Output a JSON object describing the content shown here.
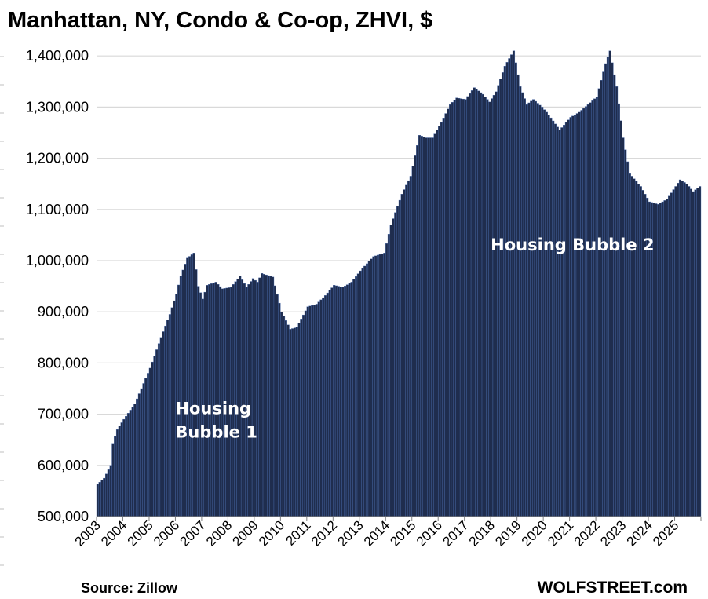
{
  "chart_data": {
    "type": "bar",
    "title": "Manhattan, NY, Condo & Co-op, ZHVI, $",
    "xlabel": "",
    "ylabel": "",
    "ylim": [
      500000,
      1400000
    ],
    "yticks": [
      "500,000",
      "600,000",
      "700,000",
      "800,000",
      "900,000",
      "1,000,000",
      "1,100,000",
      "1,200,000",
      "1,300,000",
      "1,400,000"
    ],
    "xticks": [
      "2003",
      "2004",
      "2005",
      "2006",
      "2007",
      "2008",
      "2009",
      "2010",
      "2011",
      "2012",
      "2013",
      "2014",
      "2015",
      "2016",
      "2017",
      "2018",
      "2019",
      "2020",
      "2021",
      "2022",
      "2023",
      "2024",
      "2025"
    ],
    "x_start": "2003-01",
    "frequency": "monthly",
    "grid": true,
    "legend": "none",
    "bar_color": "#1f2d4e",
    "bar_edge_color": "#4a6db0",
    "keypoints": [
      [
        "2003-01",
        563000
      ],
      [
        "2003-04",
        575000
      ],
      [
        "2003-07",
        600000
      ],
      [
        "2003-08",
        643000
      ],
      [
        "2003-10",
        670000
      ],
      [
        "2004-01",
        690000
      ],
      [
        "2004-06",
        720000
      ],
      [
        "2005-01",
        790000
      ],
      [
        "2005-06",
        850000
      ],
      [
        "2005-10",
        895000
      ],
      [
        "2006-01",
        935000
      ],
      [
        "2006-03",
        970000
      ],
      [
        "2006-06",
        1005000
      ],
      [
        "2006-09",
        1015000
      ],
      [
        "2006-11",
        950000
      ],
      [
        "2007-01",
        925000
      ],
      [
        "2007-03",
        952000
      ],
      [
        "2007-07",
        958000
      ],
      [
        "2007-10",
        945000
      ],
      [
        "2008-02",
        948000
      ],
      [
        "2008-06",
        970000
      ],
      [
        "2008-09",
        948000
      ],
      [
        "2008-12",
        965000
      ],
      [
        "2009-02",
        958000
      ],
      [
        "2009-04",
        975000
      ],
      [
        "2009-09",
        968000
      ],
      [
        "2010-01",
        900000
      ],
      [
        "2010-05",
        866000
      ],
      [
        "2010-08",
        870000
      ],
      [
        "2011-01",
        910000
      ],
      [
        "2011-05",
        915000
      ],
      [
        "2011-09",
        932000
      ],
      [
        "2012-01",
        952000
      ],
      [
        "2012-05",
        948000
      ],
      [
        "2012-09",
        958000
      ],
      [
        "2013-01",
        980000
      ],
      [
        "2013-07",
        1008000
      ],
      [
        "2013-12",
        1015000
      ],
      [
        "2014-03",
        1070000
      ],
      [
        "2014-08",
        1130000
      ],
      [
        "2014-12",
        1165000
      ],
      [
        "2015-04",
        1245000
      ],
      [
        "2015-07",
        1240000
      ],
      [
        "2015-10",
        1240000
      ],
      [
        "2016-02",
        1270000
      ],
      [
        "2016-06",
        1305000
      ],
      [
        "2016-09",
        1318000
      ],
      [
        "2017-01",
        1315000
      ],
      [
        "2017-05",
        1338000
      ],
      [
        "2017-09",
        1325000
      ],
      [
        "2017-12",
        1310000
      ],
      [
        "2018-03",
        1330000
      ],
      [
        "2018-07",
        1380000
      ],
      [
        "2018-11",
        1410000
      ],
      [
        "2019-02",
        1340000
      ],
      [
        "2019-05",
        1305000
      ],
      [
        "2019-08",
        1315000
      ],
      [
        "2019-12",
        1300000
      ],
      [
        "2020-03",
        1285000
      ],
      [
        "2020-08",
        1255000
      ],
      [
        "2021-01",
        1280000
      ],
      [
        "2021-05",
        1290000
      ],
      [
        "2021-09",
        1305000
      ],
      [
        "2022-01",
        1320000
      ],
      [
        "2022-05",
        1385000
      ],
      [
        "2022-07",
        1410000
      ],
      [
        "2022-10",
        1340000
      ],
      [
        "2023-01",
        1240000
      ],
      [
        "2023-04",
        1170000
      ],
      [
        "2023-09",
        1145000
      ],
      [
        "2024-01",
        1115000
      ],
      [
        "2024-05",
        1110000
      ],
      [
        "2024-09",
        1120000
      ],
      [
        "2025-01",
        1145000
      ],
      [
        "2025-03",
        1158000
      ],
      [
        "2025-06",
        1150000
      ],
      [
        "2025-09",
        1135000
      ],
      [
        "2025-12",
        1145000
      ]
    ],
    "annotations": [
      {
        "text_lines": [
          "Housing",
          "Bubble 1"
        ],
        "color": "#ffffff",
        "at": [
          "2006-01",
          700000
        ]
      },
      {
        "text_lines": [
          "Housing Bubble 2"
        ],
        "color": "#ffffff",
        "at": [
          "2018-01",
          1020000
        ]
      }
    ]
  },
  "footer": {
    "source": "Source: Zillow",
    "brand": "WOLFSTREET.com"
  }
}
